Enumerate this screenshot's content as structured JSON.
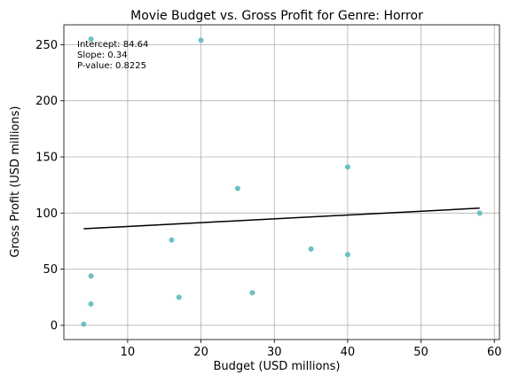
{
  "chart_data": {
    "type": "scatter",
    "title": "Movie Budget vs. Gross Profit for Genre: Horror",
    "xlabel": "Budget (USD millions)",
    "ylabel": "Gross Profit (USD millions)",
    "xlim": [
      1.3,
      60.7
    ],
    "ylim": [
      -12.7,
      267.7
    ],
    "xticks": [
      10,
      20,
      30,
      40,
      50,
      60
    ],
    "yticks": [
      0,
      50,
      100,
      150,
      200,
      250
    ],
    "grid": true,
    "point_color": "#6cc0c0",
    "line_color": "#000000",
    "points": [
      {
        "x": 4,
        "y": 1
      },
      {
        "x": 5,
        "y": 19
      },
      {
        "x": 5,
        "y": 44
      },
      {
        "x": 5,
        "y": 255
      },
      {
        "x": 16,
        "y": 76
      },
      {
        "x": 17,
        "y": 25
      },
      {
        "x": 20,
        "y": 254
      },
      {
        "x": 25,
        "y": 122
      },
      {
        "x": 27,
        "y": 29
      },
      {
        "x": 35,
        "y": 68
      },
      {
        "x": 40,
        "y": 141
      },
      {
        "x": 40,
        "y": 63
      },
      {
        "x": 58,
        "y": 100
      }
    ],
    "regression": {
      "intercept": 84.64,
      "slope": 0.34,
      "x_range": [
        4,
        58
      ]
    },
    "annotations": [
      "Intercept: 84.64",
      "Slope: 0.34",
      "P-value: 0.8225"
    ]
  }
}
